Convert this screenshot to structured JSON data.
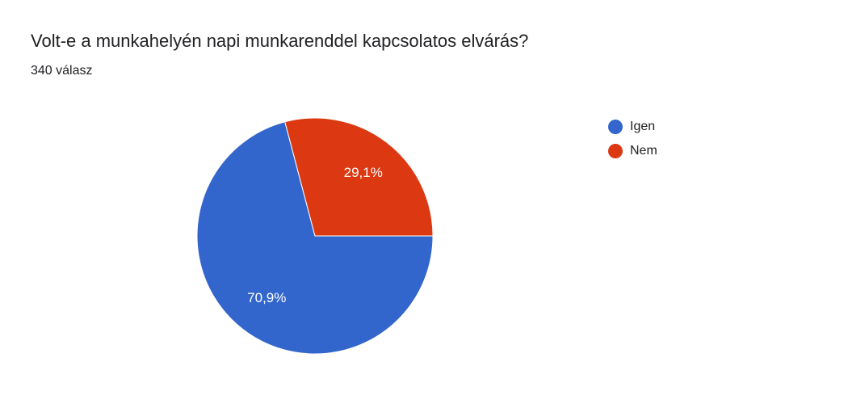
{
  "chart_data": {
    "type": "pie",
    "title": "Volt-e a munkahelyén napi munkarenddel kapcsolatos elvárás?",
    "subtitle": "340 válasz",
    "categories": [
      "Igen",
      "Nem"
    ],
    "values": [
      70.9,
      29.1
    ],
    "value_labels": [
      "70,9%",
      "29,1%"
    ],
    "colors": [
      "#3366cc",
      "#dc3912"
    ],
    "legend": "right"
  }
}
